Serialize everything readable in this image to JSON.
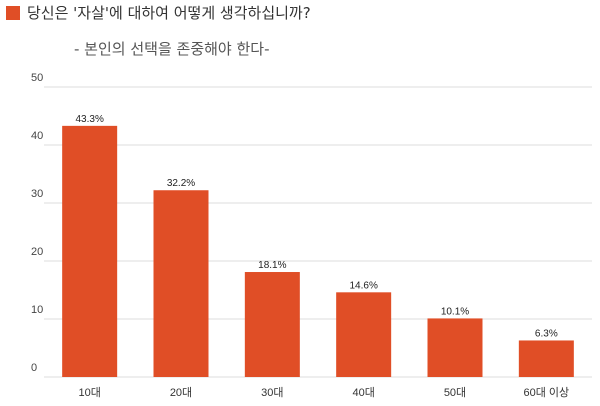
{
  "title": "당신은 '자살'에 대하여 어떻게 생각하십니까?",
  "subtitle": "- 본인의 선택을 존중해야 한다-",
  "colors": {
    "bar": "#E04E26",
    "marker": "#E04E26",
    "grid": "#dddddd"
  },
  "chart_data": {
    "type": "bar",
    "categories": [
      "10대",
      "20대",
      "30대",
      "40대",
      "50대",
      "60대 이상"
    ],
    "values": [
      43.3,
      32.2,
      18.1,
      14.6,
      10.1,
      6.3
    ],
    "data_labels": [
      "43.3%",
      "32.2%",
      "18.1%",
      "14.6%",
      "10.1%",
      "6.3%"
    ],
    "yticks": [
      0,
      10,
      20,
      30,
      40,
      50
    ],
    "ylim": [
      0,
      50
    ],
    "grid": true,
    "xlabel": "",
    "ylabel": ""
  }
}
